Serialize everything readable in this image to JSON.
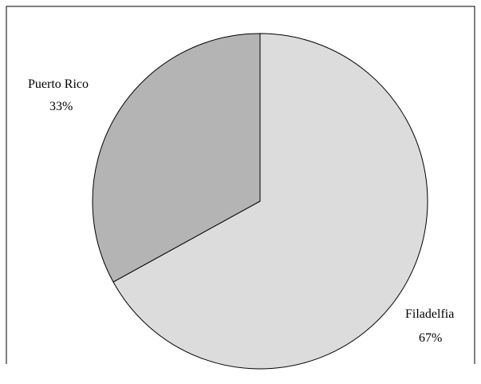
{
  "chart_data": {
    "type": "pie",
    "title": "",
    "slices": [
      {
        "label": "Filadelfia",
        "value": 67,
        "display": "67%",
        "color": "#dcdcdc"
      },
      {
        "label": "Puerto Rico",
        "value": 33,
        "display": "33%",
        "color": "#b4b4b4"
      }
    ]
  }
}
